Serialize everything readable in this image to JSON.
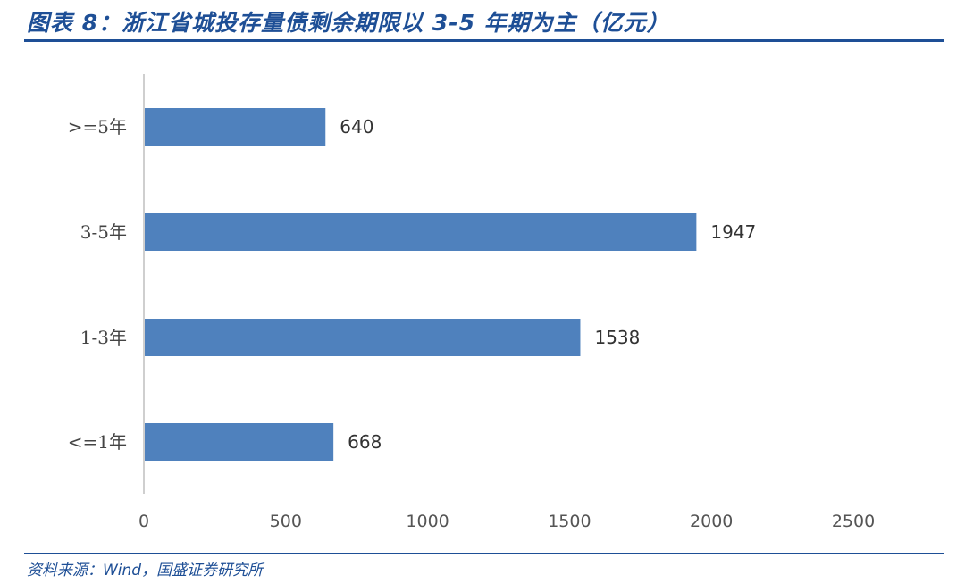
{
  "title": "图表 8：浙江省城投存量债剩余期限以 3-5 年期为主（亿元）",
  "source": "资料来源：Wind，国盛证券研究所",
  "colors": {
    "bar": "#4f81bd",
    "accent": "#1e4f96",
    "axis": "#bfbfbf"
  },
  "chart_data": {
    "type": "bar",
    "orientation": "horizontal",
    "categories": [
      ">=5年",
      "3-5年",
      "1-3年",
      "<=1年"
    ],
    "values": [
      640,
      1947,
      1538,
      668
    ],
    "xlim": [
      0,
      2500
    ],
    "xticks": [
      0,
      500,
      1000,
      1500,
      2000,
      2500
    ],
    "grid": false,
    "legend": "none",
    "xlabel": "",
    "ylabel": ""
  }
}
